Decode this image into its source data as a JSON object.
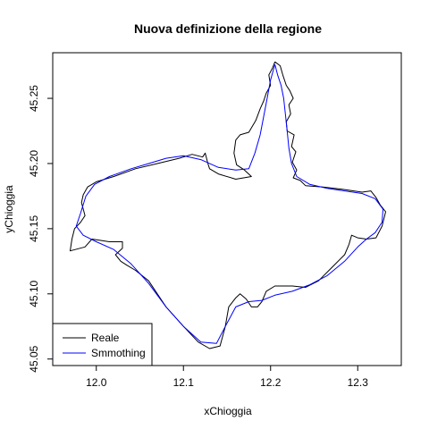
{
  "chart_data": {
    "type": "line",
    "title": "Nuova definizione della regione",
    "xlabel": "xChioggia",
    "ylabel": "yChioggia",
    "xlim": [
      11.95,
      12.35
    ],
    "ylim": [
      45.045,
      45.285
    ],
    "x_ticks": [
      12.0,
      12.1,
      12.2,
      12.3
    ],
    "x_tick_labels": [
      "12.0",
      "12.1",
      "12.2",
      "12.3"
    ],
    "y_ticks": [
      45.05,
      45.1,
      45.15,
      45.2,
      45.25
    ],
    "y_tick_labels": [
      "45.05",
      "45.10",
      "45.15",
      "45.20",
      "45.25"
    ],
    "grid": false,
    "legend_position": "bottom-left",
    "series": [
      {
        "name": "Reale",
        "color": "#000000",
        "closed": true,
        "points": [
          [
            12.205,
            45.278
          ],
          [
            12.211,
            45.275
          ],
          [
            12.214,
            45.268
          ],
          [
            12.218,
            45.26
          ],
          [
            12.222,
            45.256
          ],
          [
            12.226,
            45.25
          ],
          [
            12.221,
            45.245
          ],
          [
            12.223,
            45.238
          ],
          [
            12.218,
            45.232
          ],
          [
            12.219,
            45.225
          ],
          [
            12.227,
            45.222
          ],
          [
            12.224,
            45.213
          ],
          [
            12.229,
            45.209
          ],
          [
            12.225,
            45.201
          ],
          [
            12.23,
            45.195
          ],
          [
            12.226,
            45.189
          ],
          [
            12.234,
            45.187
          ],
          [
            12.24,
            45.183
          ],
          [
            12.26,
            45.182
          ],
          [
            12.285,
            45.18
          ],
          [
            12.305,
            45.178
          ],
          [
            12.315,
            45.179
          ],
          [
            12.321,
            45.174
          ],
          [
            12.326,
            45.168
          ],
          [
            12.332,
            45.163
          ],
          [
            12.328,
            45.152
          ],
          [
            12.321,
            45.143
          ],
          [
            12.31,
            45.142
          ],
          [
            12.3,
            45.143
          ],
          [
            12.293,
            45.145
          ],
          [
            12.29,
            45.138
          ],
          [
            12.285,
            45.13
          ],
          [
            12.27,
            45.12
          ],
          [
            12.255,
            45.11
          ],
          [
            12.24,
            45.105
          ],
          [
            12.225,
            45.106
          ],
          [
            12.215,
            45.106
          ],
          [
            12.205,
            45.106
          ],
          [
            12.195,
            45.102
          ],
          [
            12.19,
            45.094
          ],
          [
            12.185,
            45.09
          ],
          [
            12.178,
            45.09
          ],
          [
            12.172,
            45.096
          ],
          [
            12.165,
            45.1
          ],
          [
            12.16,
            45.097
          ],
          [
            12.152,
            45.09
          ],
          [
            12.148,
            45.075
          ],
          [
            12.142,
            45.06
          ],
          [
            12.13,
            45.058
          ],
          [
            12.117,
            45.063
          ],
          [
            12.1,
            45.075
          ],
          [
            12.08,
            45.09
          ],
          [
            12.06,
            45.11
          ],
          [
            12.045,
            45.118
          ],
          [
            12.035,
            45.122
          ],
          [
            12.028,
            45.125
          ],
          [
            12.022,
            45.13
          ],
          [
            12.03,
            45.135
          ],
          [
            12.03,
            45.14
          ],
          [
            12.015,
            45.14
          ],
          [
            11.995,
            45.142
          ],
          [
            11.987,
            45.136
          ],
          [
            11.97,
            45.133
          ],
          [
            11.972,
            45.142
          ],
          [
            11.975,
            45.15
          ],
          [
            11.982,
            45.155
          ],
          [
            11.987,
            45.16
          ],
          [
            11.983,
            45.17
          ],
          [
            11.985,
            45.176
          ],
          [
            11.99,
            45.182
          ],
          [
            12.0,
            45.186
          ],
          [
            12.02,
            45.19
          ],
          [
            12.045,
            45.196
          ],
          [
            12.07,
            45.2
          ],
          [
            12.095,
            45.204
          ],
          [
            12.11,
            45.207
          ],
          [
            12.122,
            45.205
          ],
          [
            12.125,
            45.208
          ],
          [
            12.128,
            45.2
          ],
          [
            12.13,
            45.196
          ],
          [
            12.14,
            45.192
          ],
          [
            12.16,
            45.188
          ],
          [
            12.178,
            45.19
          ],
          [
            12.17,
            45.195
          ],
          [
            12.161,
            45.199
          ],
          [
            12.158,
            45.208
          ],
          [
            12.16,
            45.218
          ],
          [
            12.165,
            45.222
          ],
          [
            12.175,
            45.224
          ],
          [
            12.183,
            45.233
          ],
          [
            12.188,
            45.242
          ],
          [
            12.192,
            45.248
          ],
          [
            12.195,
            45.254
          ],
          [
            12.2,
            45.26
          ],
          [
            12.198,
            45.268
          ],
          [
            12.202,
            45.273
          ]
        ]
      },
      {
        "name": "Smmothing",
        "color": "#0000ff",
        "closed": true,
        "points": [
          [
            12.205,
            45.276
          ],
          [
            12.208,
            45.268
          ],
          [
            12.212,
            45.26
          ],
          [
            12.215,
            45.25
          ],
          [
            12.217,
            45.238
          ],
          [
            12.219,
            45.225
          ],
          [
            12.221,
            45.212
          ],
          [
            12.224,
            45.2
          ],
          [
            12.23,
            45.19
          ],
          [
            12.245,
            45.184
          ],
          [
            12.265,
            45.181
          ],
          [
            12.285,
            45.179
          ],
          [
            12.305,
            45.177
          ],
          [
            12.32,
            45.173
          ],
          [
            12.329,
            45.165
          ],
          [
            12.328,
            45.155
          ],
          [
            12.32,
            45.147
          ],
          [
            12.31,
            45.142
          ],
          [
            12.3,
            45.136
          ],
          [
            12.285,
            45.125
          ],
          [
            12.265,
            45.114
          ],
          [
            12.245,
            45.107
          ],
          [
            12.225,
            45.102
          ],
          [
            12.205,
            45.099
          ],
          [
            12.19,
            45.095
          ],
          [
            12.175,
            45.094
          ],
          [
            12.16,
            45.09
          ],
          [
            12.148,
            45.075
          ],
          [
            12.138,
            45.062
          ],
          [
            12.12,
            45.063
          ],
          [
            12.1,
            45.075
          ],
          [
            12.08,
            45.09
          ],
          [
            12.06,
            45.108
          ],
          [
            12.04,
            45.123
          ],
          [
            12.02,
            45.134
          ],
          [
            12.0,
            45.14
          ],
          [
            11.985,
            45.145
          ],
          [
            11.977,
            45.152
          ],
          [
            11.982,
            45.162
          ],
          [
            11.988,
            45.175
          ],
          [
            11.998,
            45.184
          ],
          [
            12.015,
            45.19
          ],
          [
            12.04,
            45.196
          ],
          [
            12.06,
            45.2
          ],
          [
            12.08,
            45.204
          ],
          [
            12.1,
            45.206
          ],
          [
            12.12,
            45.203
          ],
          [
            12.14,
            45.197
          ],
          [
            12.16,
            45.195
          ],
          [
            12.175,
            45.196
          ],
          [
            12.182,
            45.208
          ],
          [
            12.188,
            45.222
          ],
          [
            12.192,
            45.236
          ],
          [
            12.196,
            45.25
          ],
          [
            12.2,
            45.264
          ]
        ]
      }
    ]
  }
}
